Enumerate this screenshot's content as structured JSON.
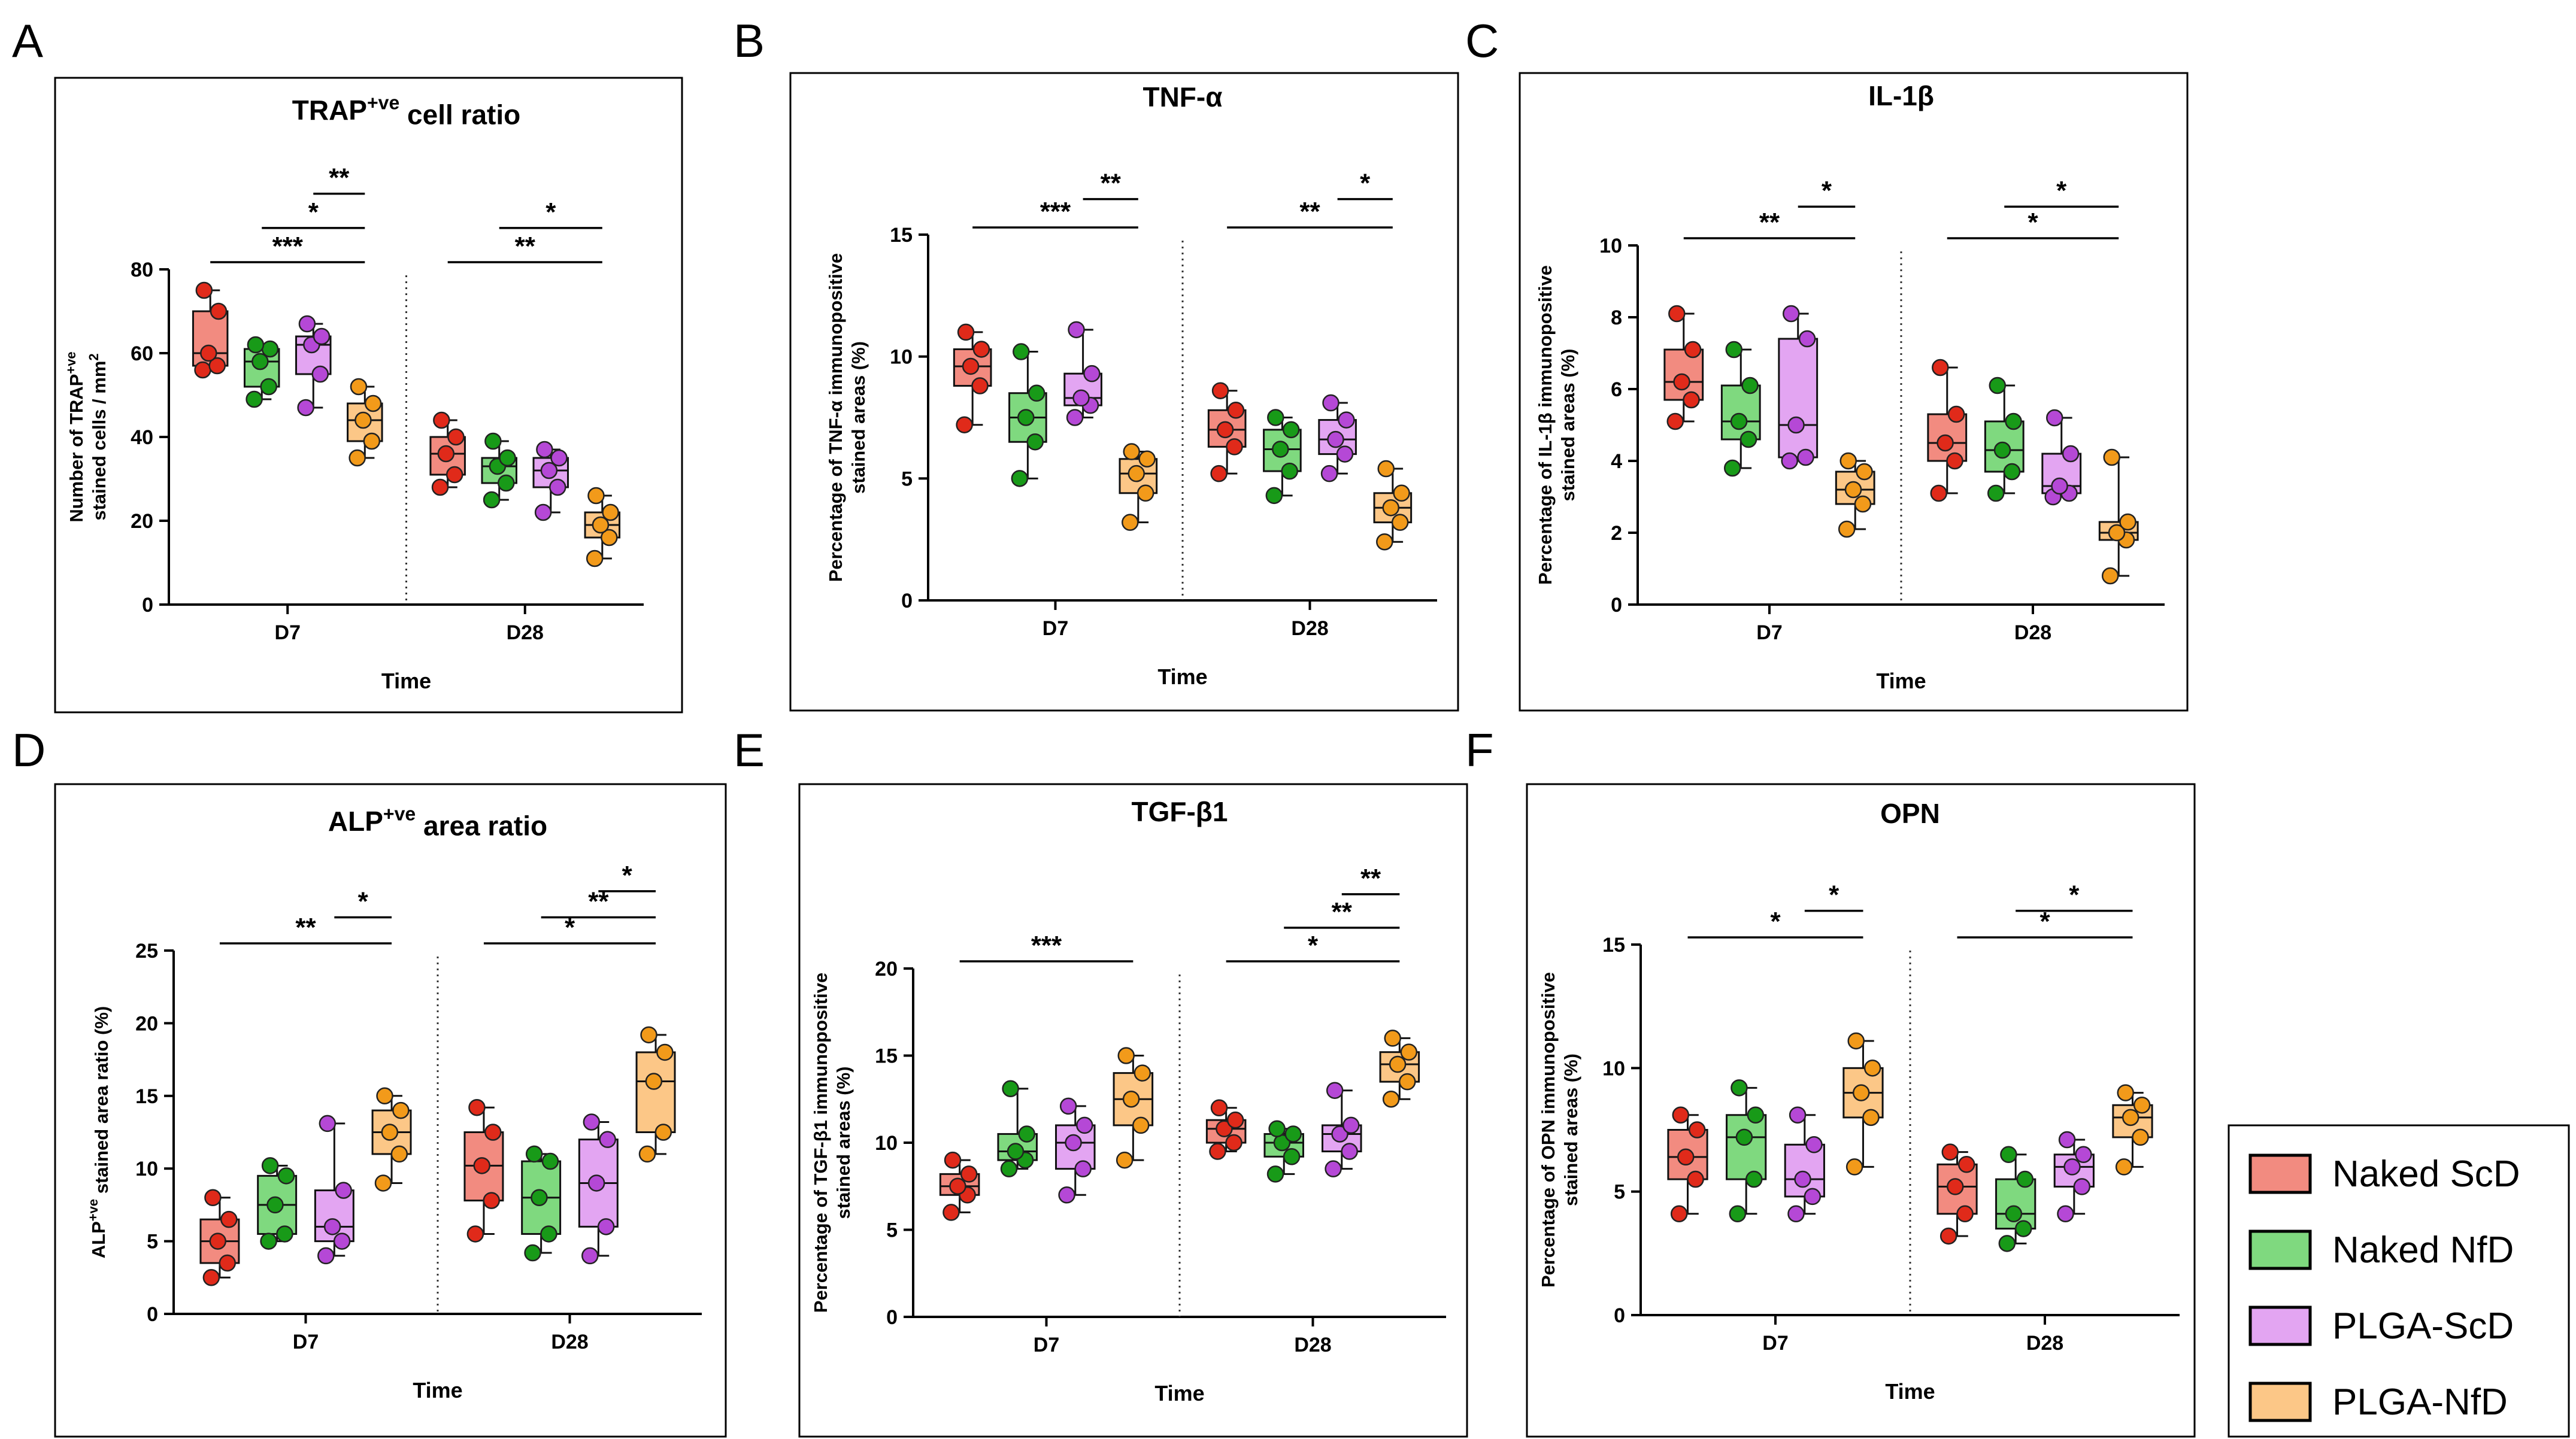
{
  "figure": {
    "groups": [
      "Naked ScD",
      "Naked NfD",
      "PLGA-ScD",
      "PLGA-NfD"
    ]
  },
  "colors": {
    "Naked ScD": {
      "fill": "#f28b80",
      "point": "#e02a1a"
    },
    "Naked NfD": {
      "fill": "#7fd97f",
      "point": "#189a18"
    },
    "PLGA-ScD": {
      "fill": "#e3a5f2",
      "point": "#b548d6"
    },
    "PLGA-NfD": {
      "fill": "#fcc787",
      "point": "#f29a1a"
    }
  },
  "chart_data": [
    {
      "letter": "A",
      "type": "box",
      "title": "TRAP+ve cell ratio",
      "title_main": "TRAP",
      "title_sup": "+ve",
      "title_rest": " cell ratio",
      "ylabel_line1": "Number of TRAP+ve",
      "ylabel_line1_main": "Number of TRAP",
      "ylabel_line1_sup": "+ve",
      "ylabel_line2": "stained cells / mm2",
      "ylabel_line2_main": "stained cells / mm",
      "ylabel_line2_sup": "2",
      "xlabel": "Time",
      "ylim": [
        0,
        80
      ],
      "yticks": [
        0,
        20,
        40,
        60,
        80
      ],
      "categories": [
        "D7",
        "D28"
      ],
      "series": [
        {
          "name": "Naked ScD",
          "D7": [
            56,
            57,
            60,
            70,
            75
          ],
          "D28": [
            28,
            31,
            36,
            40,
            44
          ]
        },
        {
          "name": "Naked NfD",
          "D7": [
            49,
            52,
            58,
            61,
            62
          ],
          "D28": [
            25,
            29,
            33,
            35,
            39
          ]
        },
        {
          "name": "PLGA-ScD",
          "D7": [
            47,
            55,
            62,
            64,
            67
          ],
          "D28": [
            22,
            28,
            32,
            35,
            37
          ]
        },
        {
          "name": "PLGA-NfD",
          "D7": [
            35,
            39,
            44,
            48,
            52
          ],
          "D28": [
            11,
            16,
            19,
            22,
            26
          ]
        }
      ],
      "significance": [
        {
          "label": "***",
          "category": "D7",
          "from": 0,
          "to": 3
        },
        {
          "label": "*",
          "category": "D7",
          "from": 1,
          "to": 3
        },
        {
          "label": "**",
          "category": "D7",
          "from": 2,
          "to": 3
        },
        {
          "label": "**",
          "category": "D28",
          "from": 0,
          "to": 3
        },
        {
          "label": "*",
          "category": "D28",
          "from": 1,
          "to": 3
        }
      ]
    },
    {
      "letter": "B",
      "type": "box",
      "title": "TNF-α",
      "ylabel_line1": "Percentage of TNF-α immunopositive",
      "ylabel_line2": "stained areas (%)",
      "xlabel": "Time",
      "ylim": [
        0,
        15
      ],
      "yticks": [
        0,
        5,
        10,
        15
      ],
      "categories": [
        "D7",
        "D28"
      ],
      "series": [
        {
          "name": "Naked ScD",
          "D7": [
            7.2,
            8.8,
            9.6,
            10.3,
            11.0
          ],
          "D28": [
            5.2,
            6.3,
            7.0,
            7.8,
            8.6
          ]
        },
        {
          "name": "Naked NfD",
          "D7": [
            5.0,
            6.5,
            7.5,
            8.5,
            10.2
          ],
          "D28": [
            4.3,
            5.3,
            6.2,
            7.0,
            7.5
          ]
        },
        {
          "name": "PLGA-ScD",
          "D7": [
            7.5,
            8.0,
            8.3,
            9.3,
            11.1
          ],
          "D28": [
            5.2,
            6.0,
            6.6,
            7.4,
            8.1
          ]
        },
        {
          "name": "PLGA-NfD",
          "D7": [
            3.2,
            4.4,
            5.2,
            5.8,
            6.1
          ],
          "D28": [
            2.4,
            3.2,
            3.8,
            4.4,
            5.4
          ]
        }
      ],
      "significance": [
        {
          "label": "***",
          "category": "D7",
          "from": 0,
          "to": 3
        },
        {
          "label": "**",
          "category": "D7",
          "from": 2,
          "to": 3
        },
        {
          "label": "**",
          "category": "D28",
          "from": 0,
          "to": 3
        },
        {
          "label": "*",
          "category": "D28",
          "from": 2,
          "to": 3
        }
      ]
    },
    {
      "letter": "C",
      "type": "box",
      "title": "IL-1β",
      "ylabel_line1": "Percentage of IL-1β immunopositive",
      "ylabel_line2": "stained areas (%)",
      "xlabel": "Time",
      "ylim": [
        0,
        10
      ],
      "yticks": [
        0,
        2,
        4,
        6,
        8,
        10
      ],
      "categories": [
        "D7",
        "D28"
      ],
      "series": [
        {
          "name": "Naked ScD",
          "D7": [
            5.1,
            5.7,
            6.2,
            7.1,
            8.1
          ],
          "D28": [
            3.1,
            4.0,
            4.5,
            5.3,
            6.6
          ]
        },
        {
          "name": "Naked NfD",
          "D7": [
            3.8,
            4.6,
            5.1,
            6.1,
            7.1
          ],
          "D28": [
            3.1,
            3.7,
            4.3,
            5.1,
            6.1
          ]
        },
        {
          "name": "PLGA-ScD",
          "D7": [
            4.0,
            4.1,
            5.0,
            7.4,
            8.1
          ],
          "D28": [
            3.0,
            3.1,
            3.3,
            4.2,
            5.2
          ]
        },
        {
          "name": "PLGA-NfD",
          "D7": [
            2.1,
            2.8,
            3.2,
            3.7,
            4.0
          ],
          "D28": [
            0.8,
            1.8,
            2.0,
            2.3,
            4.1
          ]
        }
      ],
      "significance": [
        {
          "label": "**",
          "category": "D7",
          "from": 0,
          "to": 3
        },
        {
          "label": "*",
          "category": "D7",
          "from": 2,
          "to": 3
        },
        {
          "label": "*",
          "category": "D28",
          "from": 0,
          "to": 3
        },
        {
          "label": "*",
          "category": "D28",
          "from": 1,
          "to": 3
        }
      ]
    },
    {
      "letter": "D",
      "type": "box",
      "title": "ALP+ve area ratio",
      "title_main": "ALP",
      "title_sup": "+ve",
      "title_rest": " area ratio",
      "ylabel_line1": "ALP+ve stained area ratio (%)",
      "ylabel_line1_main": "ALP",
      "ylabel_line1_sup": "+ve",
      "ylabel_line1_rest": " stained area ratio (%)",
      "xlabel": "Time",
      "ylim": [
        0,
        25
      ],
      "yticks": [
        0,
        5,
        10,
        15,
        20,
        25
      ],
      "categories": [
        "D7",
        "D28"
      ],
      "series": [
        {
          "name": "Naked ScD",
          "D7": [
            2.5,
            3.5,
            5.0,
            6.5,
            8.0
          ],
          "D28": [
            5.5,
            7.8,
            10.2,
            12.5,
            14.2
          ]
        },
        {
          "name": "Naked NfD",
          "D7": [
            5.0,
            5.5,
            7.5,
            9.5,
            10.2
          ],
          "D28": [
            4.2,
            5.5,
            8.0,
            10.5,
            11.0
          ]
        },
        {
          "name": "PLGA-ScD",
          "D7": [
            4.0,
            5.0,
            6.0,
            8.5,
            13.1
          ],
          "D28": [
            4.0,
            6.0,
            9.0,
            12.0,
            13.2
          ]
        },
        {
          "name": "PLGA-NfD",
          "D7": [
            9.0,
            11.0,
            12.5,
            14.0,
            15.0
          ],
          "D28": [
            11.0,
            12.5,
            16.0,
            18.0,
            19.2
          ]
        }
      ],
      "significance": [
        {
          "label": "**",
          "category": "D7",
          "from": 0,
          "to": 3
        },
        {
          "label": "*",
          "category": "D7",
          "from": 2,
          "to": 3
        },
        {
          "label": "*",
          "category": "D28",
          "from": 0,
          "to": 3
        },
        {
          "label": "**",
          "category": "D28",
          "from": 1,
          "to": 3
        },
        {
          "label": "*",
          "category": "D28",
          "from": 2,
          "to": 3
        }
      ]
    },
    {
      "letter": "E",
      "type": "box",
      "title": "TGF-β1",
      "ylabel_line1": "Percentage of TGF-β1 immunopositive",
      "ylabel_line2": "stained areas (%)",
      "xlabel": "Time",
      "ylim": [
        0,
        20
      ],
      "yticks": [
        0,
        5,
        10,
        15,
        20
      ],
      "categories": [
        "D7",
        "D28"
      ],
      "series": [
        {
          "name": "Naked ScD",
          "D7": [
            6.0,
            7.0,
            7.5,
            8.2,
            9.0
          ],
          "D28": [
            9.5,
            10.0,
            10.8,
            11.3,
            12.0
          ]
        },
        {
          "name": "Naked NfD",
          "D7": [
            8.5,
            9.0,
            9.5,
            10.5,
            13.1
          ],
          "D28": [
            8.2,
            9.2,
            10.0,
            10.5,
            10.8
          ]
        },
        {
          "name": "PLGA-ScD",
          "D7": [
            7.0,
            8.5,
            10.0,
            11.0,
            12.1
          ],
          "D28": [
            8.5,
            9.5,
            10.5,
            11.0,
            13.0
          ]
        },
        {
          "name": "PLGA-NfD",
          "D7": [
            9.0,
            11.0,
            12.5,
            14.0,
            15.0
          ],
          "D28": [
            12.5,
            13.5,
            14.5,
            15.2,
            16.0
          ]
        }
      ],
      "significance": [
        {
          "label": "***",
          "category": "D7",
          "from": 0,
          "to": 3
        },
        {
          "label": "*",
          "category": "D28",
          "from": 0,
          "to": 3
        },
        {
          "label": "**",
          "category": "D28",
          "from": 1,
          "to": 3
        },
        {
          "label": "**",
          "category": "D28",
          "from": 2,
          "to": 3
        }
      ]
    },
    {
      "letter": "F",
      "type": "box",
      "title": "OPN",
      "ylabel_line1": "Percentage of OPN immunopositive",
      "ylabel_line2": "stained areas (%)",
      "xlabel": "Time",
      "ylim": [
        0,
        15
      ],
      "yticks": [
        0,
        5,
        10,
        15
      ],
      "categories": [
        "D7",
        "D28"
      ],
      "series": [
        {
          "name": "Naked ScD",
          "D7": [
            4.1,
            5.5,
            6.4,
            7.5,
            8.1
          ],
          "D28": [
            3.2,
            4.1,
            5.2,
            6.1,
            6.6
          ]
        },
        {
          "name": "Naked NfD",
          "D7": [
            4.1,
            5.5,
            7.2,
            8.1,
            9.2
          ],
          "D28": [
            2.9,
            3.5,
            4.1,
            5.5,
            6.5
          ]
        },
        {
          "name": "PLGA-ScD",
          "D7": [
            4.1,
            4.8,
            5.5,
            6.9,
            8.1
          ],
          "D28": [
            4.1,
            5.2,
            6.0,
            6.5,
            7.1
          ]
        },
        {
          "name": "PLGA-NfD",
          "D7": [
            6.0,
            8.0,
            9.0,
            10.0,
            11.1
          ],
          "D28": [
            6.0,
            7.2,
            8.0,
            8.5,
            9.0
          ]
        }
      ],
      "significance": [
        {
          "label": "*",
          "category": "D7",
          "from": 0,
          "to": 3
        },
        {
          "label": "*",
          "category": "D7",
          "from": 2,
          "to": 3
        },
        {
          "label": "*",
          "category": "D28",
          "from": 0,
          "to": 3
        },
        {
          "label": "*",
          "category": "D28",
          "from": 1,
          "to": 3
        }
      ]
    }
  ]
}
